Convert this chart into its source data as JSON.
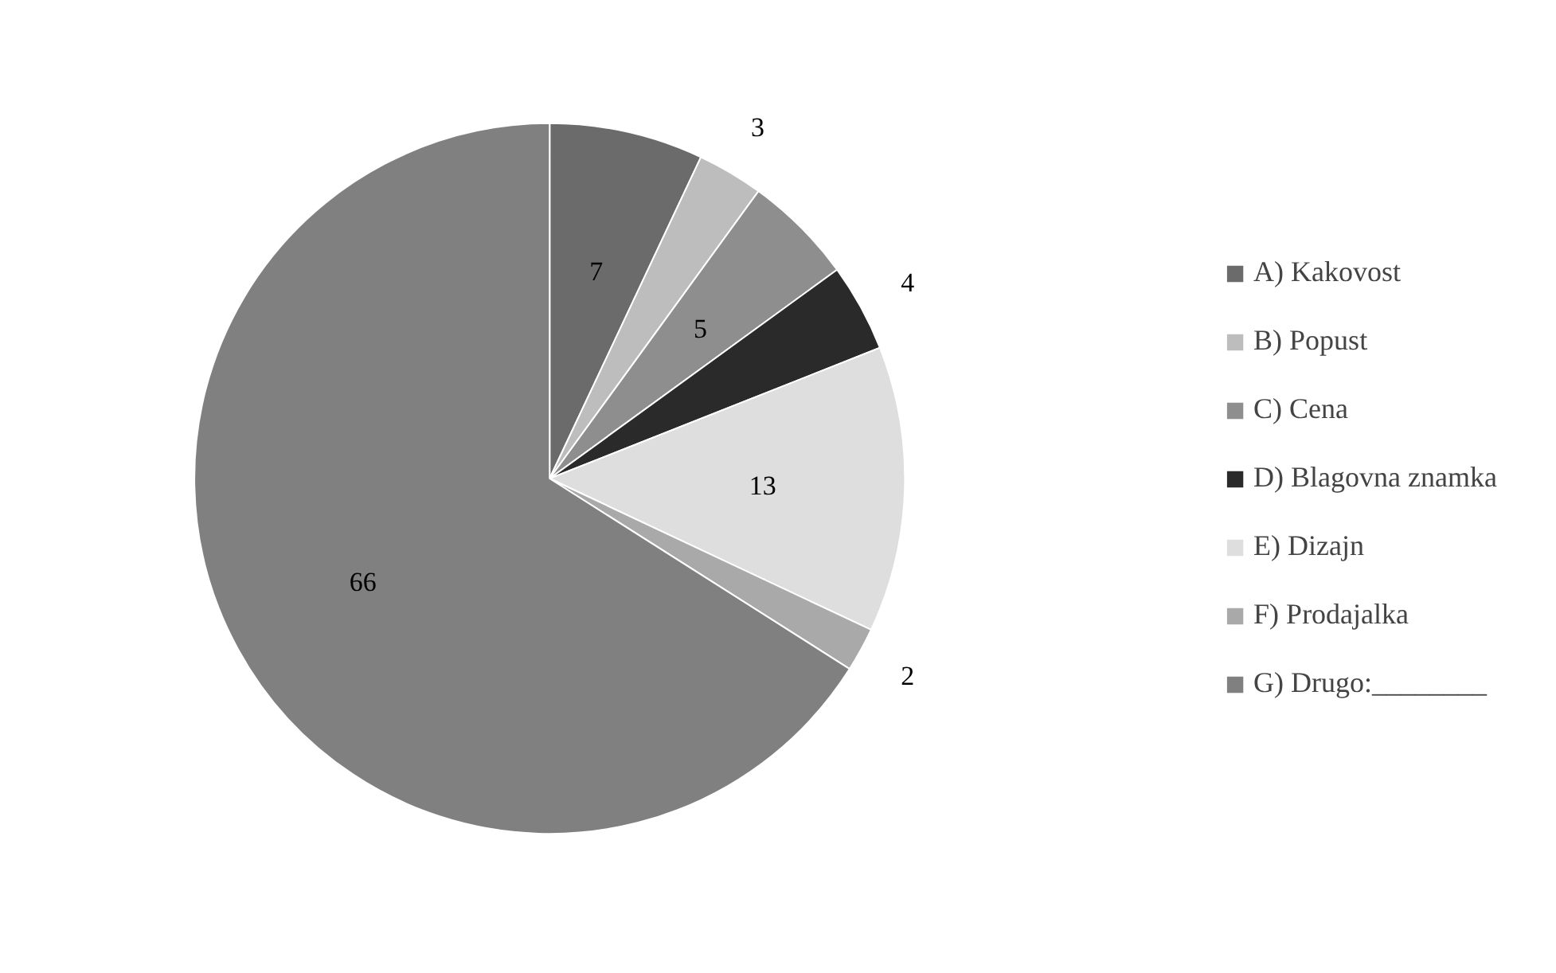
{
  "chart_data": {
    "type": "pie",
    "categories": [
      "A) Kakovost",
      "B) Popust",
      "C) Cena",
      "D) Blagovna znamka",
      "E) Dizajn",
      "F) Prodajalka",
      "G) Drugo:________"
    ],
    "values": [
      7,
      3,
      5,
      4,
      13,
      2,
      66
    ],
    "colors": [
      "#6b6b6b",
      "#bdbdbd",
      "#8e8e8e",
      "#2a2a2a",
      "#dedede",
      "#a9a9a9",
      "#808080"
    ],
    "data_labels": true,
    "legend": "right"
  }
}
